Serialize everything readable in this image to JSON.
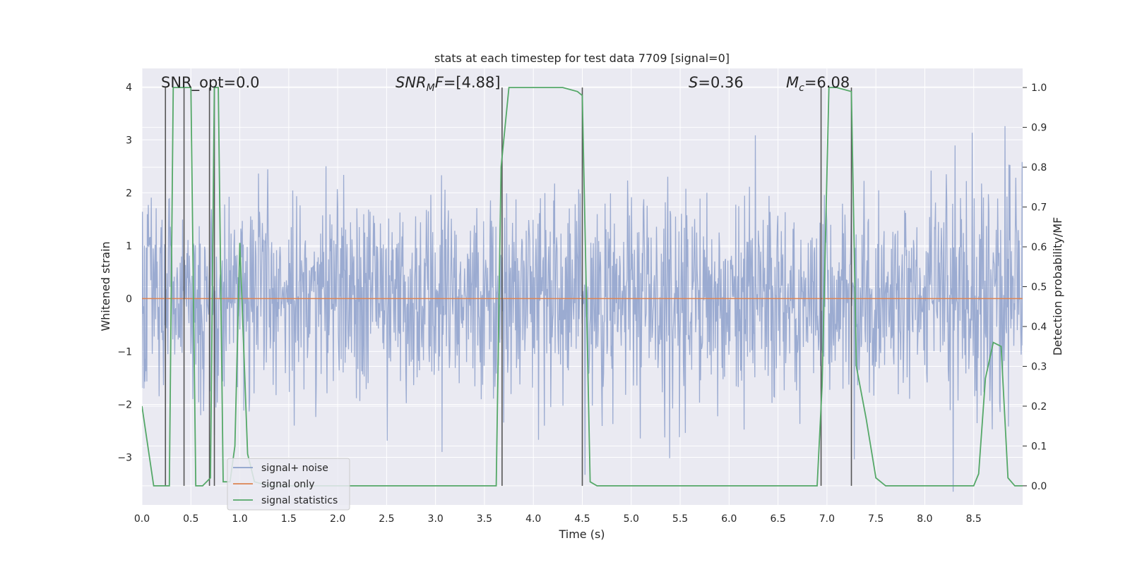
{
  "chart_data": {
    "type": "line",
    "title": "stats at each timestep for test data 7709 [signal=0]",
    "xlabel": "Time (s)",
    "ylabel_left": "Whitened strain",
    "ylabel_right": "Detection probability/MF",
    "xlim": [
      0.0,
      9.0
    ],
    "ylim_left": [
      -3.9,
      4.35
    ],
    "ylim_right": [
      -0.048,
      1.048
    ],
    "x_ticks": [
      "0.0",
      "0.5",
      "1.0",
      "1.5",
      "2.0",
      "2.5",
      "3.0",
      "3.5",
      "4.0",
      "4.5",
      "5.0",
      "5.5",
      "6.0",
      "6.5",
      "7.0",
      "7.5",
      "8.0",
      "8.5"
    ],
    "y_ticks_left": [
      "4",
      "3",
      "2",
      "1",
      "0",
      "−1",
      "−2",
      "−3"
    ],
    "y_ticks_right": [
      "1.0",
      "0.9",
      "0.8",
      "0.7",
      "0.6",
      "0.5",
      "0.4",
      "0.3",
      "0.2",
      "0.1",
      "0.0"
    ],
    "annotations": {
      "snr_opt": "SNR_opt=0.0",
      "snr_mf_sym": "SNR",
      "snr_mf_sub": "M",
      "snr_mf_mid": "F",
      "snr_mf_val": "=[4.88]",
      "s_sym": "S",
      "s_val": "=0.36",
      "mc_sym": "M",
      "mc_sub": "c",
      "mc_val": "=6.08"
    },
    "legend": {
      "position": "lower-left",
      "entries": [
        "signal+ noise",
        "signal only",
        "signal statistics"
      ]
    },
    "colors": {
      "noise": "#8da0cb",
      "signal": "#dd8452",
      "stats": "#55a868",
      "vline": "#555555",
      "background": "#eaeaf2",
      "grid": "#ffffff"
    },
    "series": [
      {
        "name": "signal+ noise",
        "note": "dense whitened noise, approx. gaussian, std ~1, peaks up to ~4 and down to ~-3.6",
        "noise_seed": 7709,
        "noise_std": 0.98,
        "samples": 1800
      },
      {
        "name": "signal only",
        "x": [
          0.0,
          9.0
        ],
        "y": [
          0.0,
          0.0
        ]
      },
      {
        "name": "signal statistics",
        "axis": "right",
        "x": [
          0.0,
          0.06,
          0.12,
          0.2,
          0.24,
          0.28,
          0.32,
          0.42,
          0.5,
          0.55,
          0.62,
          0.7,
          0.74,
          0.78,
          0.83,
          0.9,
          0.95,
          1.0,
          1.08,
          1.15,
          1.3,
          2.0,
          3.0,
          3.62,
          3.67,
          3.75,
          3.85,
          4.0,
          4.3,
          4.45,
          4.5,
          4.58,
          4.65,
          5.0,
          6.0,
          6.9,
          6.95,
          7.02,
          7.1,
          7.25,
          7.3,
          7.4,
          7.5,
          7.6,
          8.0,
          8.5,
          8.55,
          8.62,
          8.7,
          8.78,
          8.85,
          8.92,
          9.0
        ],
        "y": [
          0.2,
          0.1,
          0.0,
          0.0,
          0.0,
          0.0,
          1.0,
          1.0,
          1.0,
          0.0,
          0.0,
          0.02,
          1.0,
          1.0,
          0.01,
          0.01,
          0.1,
          0.61,
          0.08,
          0.01,
          0.0,
          0.0,
          0.0,
          0.0,
          0.8,
          1.0,
          1.0,
          1.0,
          1.0,
          0.99,
          0.98,
          0.01,
          0.0,
          0.0,
          0.0,
          0.0,
          0.25,
          1.0,
          1.0,
          0.99,
          0.3,
          0.17,
          0.02,
          0.0,
          0.0,
          0.0,
          0.03,
          0.27,
          0.36,
          0.35,
          0.02,
          0.0,
          0.0
        ]
      }
    ],
    "vertical_lines_x": [
      0.24,
      0.43,
      0.69,
      0.74,
      3.68,
      4.5,
      6.94,
      7.25
    ]
  }
}
